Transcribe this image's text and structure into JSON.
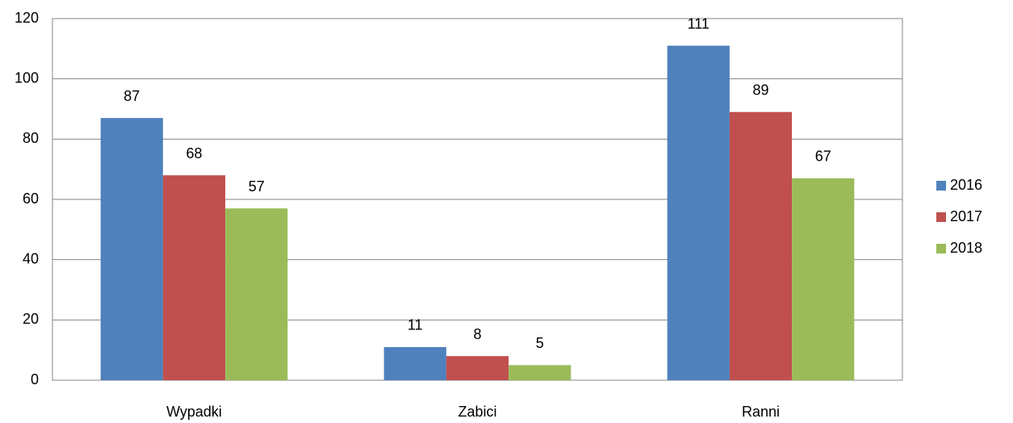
{
  "chart_data": {
    "type": "bar",
    "categories": [
      "Wypadki",
      "Zabici",
      "Ranni"
    ],
    "series": [
      {
        "name": "2016",
        "color": "#4f81bd",
        "values": [
          87,
          11,
          111
        ]
      },
      {
        "name": "2017",
        "color": "#c0504d",
        "values": [
          68,
          8,
          89
        ]
      },
      {
        "name": "2018",
        "color": "#9bbb59",
        "values": [
          57,
          5,
          67
        ]
      }
    ],
    "ylim": [
      0,
      120
    ],
    "yticks": [
      0,
      20,
      40,
      60,
      80,
      100,
      120
    ],
    "grid": true,
    "legend": "right"
  }
}
